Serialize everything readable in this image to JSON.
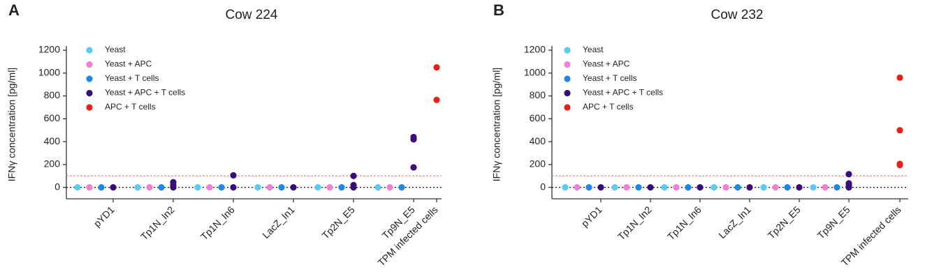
{
  "chart_data": [
    {
      "type": "strip",
      "panel_label": "A",
      "title": "Cow 224",
      "y_label": "IFNγ concentration [pg/ml]",
      "categories": [
        "pYD1",
        "Tp1N_In2",
        "Tp1N_In6",
        "LacZ_In1",
        "Tp2N_E5",
        "Tp9N_E5",
        "TPM infected cells"
      ],
      "series": [
        {
          "name": "Yeast",
          "color": "#5ccbf2",
          "values": [
            [
              0
            ],
            [
              0
            ],
            [
              0
            ],
            [
              0
            ],
            [
              0
            ],
            [
              0
            ],
            null
          ]
        },
        {
          "name": "Yeast + APC",
          "color": "#f27fd6",
          "values": [
            [
              0
            ],
            [
              0
            ],
            [
              0
            ],
            [
              0
            ],
            [
              0
            ],
            [
              0
            ],
            null
          ]
        },
        {
          "name": "Yeast + T cells",
          "color": "#1e88e5",
          "values": [
            [
              0
            ],
            [
              0
            ],
            [
              0
            ],
            [
              0
            ],
            [
              0
            ],
            [
              0
            ],
            null
          ]
        },
        {
          "name": "Yeast + APC + T cells",
          "color": "#3a0c78",
          "values": [
            [
              0
            ],
            [
              0,
              20,
              45
            ],
            [
              0,
              105
            ],
            [
              0
            ],
            [
              0,
              20,
              100
            ],
            [
              175,
              420,
              440
            ],
            null
          ]
        },
        {
          "name": "APC + T cells",
          "color": "#e8201c",
          "values": [
            null,
            null,
            null,
            null,
            null,
            null,
            [
              765,
              1050
            ]
          ]
        }
      ],
      "hlines": [
        {
          "value": 100,
          "color": "#e88a8a",
          "dash": "3,2"
        },
        {
          "value": 0,
          "color": "#111",
          "dash": "2,3"
        }
      ],
      "ylim": [
        -100,
        1200
      ],
      "yticks": [
        0,
        200,
        400,
        600,
        800,
        1000,
        1200
      ]
    },
    {
      "type": "strip",
      "panel_label": "B",
      "title": "Cow 232",
      "y_label": "IFNγ concentration [pg/ml]",
      "categories": [
        "pYD1",
        "Tp1N_In2",
        "Tp1N_In6",
        "LacZ_In1",
        "Tp2N_E5",
        "Tp9N_E5",
        "TPM infected cells"
      ],
      "series": [
        {
          "name": "Yeast",
          "color": "#5ccbf2",
          "values": [
            [
              0
            ],
            [
              0
            ],
            [
              0
            ],
            [
              0
            ],
            [
              0
            ],
            [
              0
            ],
            null
          ]
        },
        {
          "name": "Yeast + APC",
          "color": "#f27fd6",
          "values": [
            [
              0
            ],
            [
              0
            ],
            [
              0
            ],
            [
              0
            ],
            [
              0
            ],
            [
              0
            ],
            null
          ]
        },
        {
          "name": "Yeast + T cells",
          "color": "#1e88e5",
          "values": [
            [
              0
            ],
            [
              0
            ],
            [
              0
            ],
            [
              0
            ],
            [
              0
            ],
            [
              0
            ],
            null
          ]
        },
        {
          "name": "Yeast + APC + T cells",
          "color": "#3a0c78",
          "values": [
            [
              0
            ],
            [
              0
            ],
            [
              0
            ],
            [
              0
            ],
            [
              0
            ],
            [
              0,
              15,
              35,
              115
            ],
            null
          ]
        },
        {
          "name": "APC + T cells",
          "color": "#e8201c",
          "values": [
            null,
            null,
            null,
            null,
            null,
            null,
            [
              195,
              205,
              500,
              960
            ]
          ]
        }
      ],
      "hlines": [
        {
          "value": 100,
          "color": "#e88a8a",
          "dash": "3,2"
        },
        {
          "value": 0,
          "color": "#111",
          "dash": "2,3"
        }
      ],
      "ylim": [
        -100,
        1200
      ],
      "yticks": [
        0,
        200,
        400,
        600,
        800,
        1000,
        1200
      ]
    }
  ]
}
